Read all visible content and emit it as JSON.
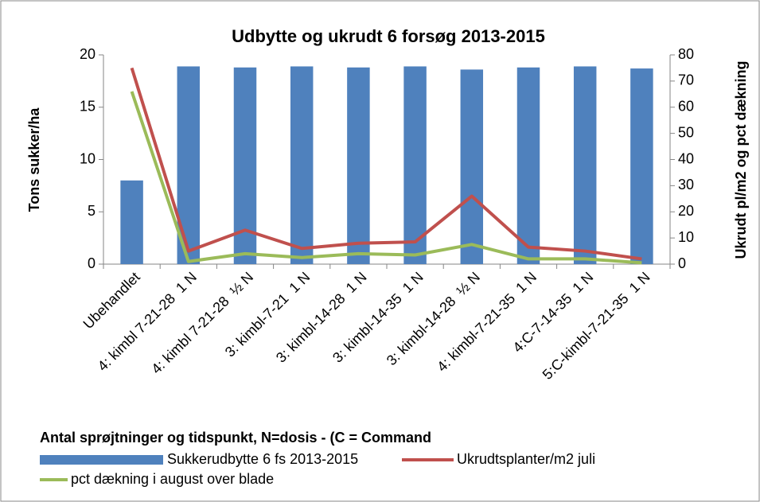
{
  "chart_data": {
    "type": "bar",
    "title": "Udbytte og ukrudt 6 forsøg 2013-2015",
    "x_label": "Antal sprøjtninger og tidspunkt, N=dosis - (C = Command",
    "y_label": "Tons sukker/ha",
    "y2_label": "Ukrudt pl/m2 og pct dækning",
    "categories": [
      "Ubehandlet",
      "4: kimbl 7-21-28  1 N",
      "4: kimbl 7-21-28  ½ N",
      "3: kimbl-7-21  1 N",
      "3: kimbl-14-28  1 N",
      "3: kimbl-14-35  1 N",
      "3: kimbl-14-28  ½ N",
      "4: kimbl-7-21-35  1 N",
      "4:C-7-14-35  1 N",
      "5:C-kimbl-7-21-35  1 N"
    ],
    "series": [
      {
        "name": "Sukkerudbytte 6 fs 2013-2015",
        "type": "bar",
        "color": "#4f81bd",
        "values": [
          8,
          18.9,
          18.8,
          18.9,
          18.8,
          18.9,
          18.6,
          18.8,
          18.9,
          18.7
        ]
      },
      {
        "name": "Ukrudtsplanter/m2 juli",
        "type": "line",
        "axis": "y2",
        "color": "#c0504d",
        "values": [
          75,
          5,
          13,
          6,
          8,
          8.5,
          26,
          6.5,
          5,
          2
        ]
      },
      {
        "name": "pct dækning i august over blade",
        "type": "line",
        "axis": "y2",
        "color": "#9bbb59",
        "values": [
          66,
          1,
          4,
          2.5,
          4,
          3.5,
          7.5,
          2,
          2,
          0.5
        ]
      }
    ],
    "ylim": [
      0,
      20
    ],
    "yticks": [
      0,
      5,
      10,
      15,
      20
    ],
    "y2lim": [
      0,
      80
    ],
    "y2ticks": [
      0,
      10,
      20,
      30,
      40,
      50,
      60,
      70,
      80
    ],
    "grid": false
  }
}
